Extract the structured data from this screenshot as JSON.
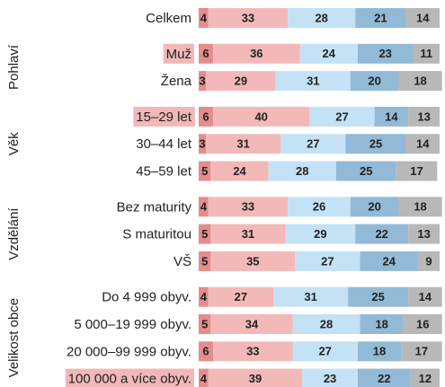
{
  "chart_data": {
    "type": "bar",
    "orientation": "horizontal",
    "stacked": true,
    "categories": [
      "Celkem",
      "Muž",
      "Žena",
      "15–29 let",
      "30–44 let",
      "45–59 let",
      "Bez maturity",
      "S maturitou",
      "VŠ",
      "Do 4 999 obyv.",
      "5 000–19 999 obyv.",
      "20 000–99 999 obyv.",
      "100 000 a více obyv."
    ],
    "highlight": [
      false,
      true,
      false,
      true,
      false,
      false,
      false,
      false,
      false,
      false,
      false,
      false,
      true
    ],
    "highlight_color": "#f2b8b8",
    "groups": [
      {
        "label": "Pohlaví",
        "categories": [
          1,
          2
        ]
      },
      {
        "label": "Věk",
        "categories": [
          3,
          4,
          5
        ]
      },
      {
        "label": "Vzdělání",
        "categories": [
          6,
          7,
          8
        ]
      },
      {
        "label": "Velikost obce",
        "categories": [
          9,
          10,
          11,
          12
        ]
      }
    ],
    "series": [
      {
        "color": "#e58c8c",
        "values": [
          4,
          6,
          3,
          6,
          3,
          5,
          4,
          5,
          5,
          4,
          5,
          6,
          4
        ]
      },
      {
        "color": "#f3b9b9",
        "values": [
          33,
          36,
          29,
          40,
          31,
          24,
          33,
          31,
          35,
          27,
          34,
          33,
          39
        ]
      },
      {
        "color": "#c3e2f6",
        "values": [
          28,
          24,
          31,
          27,
          27,
          28,
          26,
          29,
          27,
          31,
          28,
          27,
          23
        ]
      },
      {
        "color": "#92bad6",
        "values": [
          21,
          23,
          20,
          14,
          25,
          25,
          20,
          22,
          24,
          25,
          18,
          18,
          22
        ]
      },
      {
        "color": "#b8b8b8",
        "values": [
          14,
          11,
          18,
          13,
          14,
          17,
          18,
          13,
          9,
          14,
          16,
          17,
          12
        ]
      }
    ]
  }
}
